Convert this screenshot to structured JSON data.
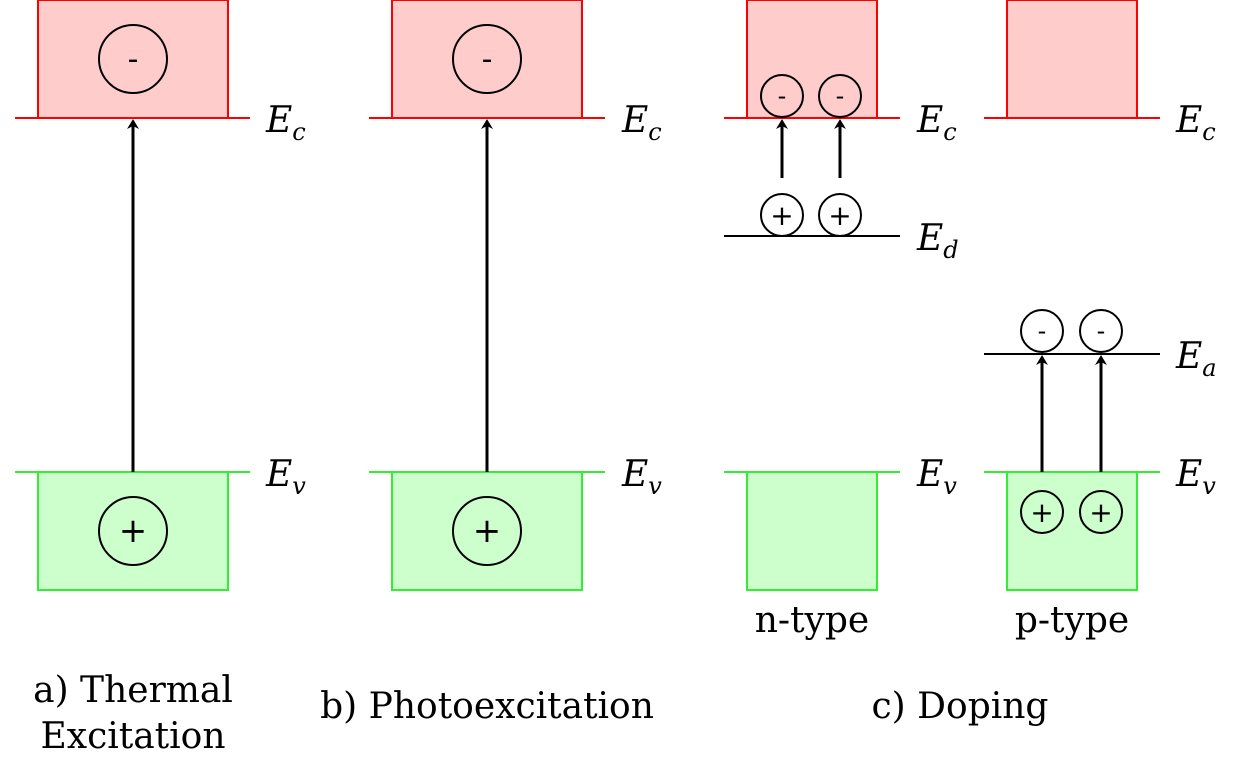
{
  "colors": {
    "conduction_fill": "#ffcccc",
    "conduction_stroke": "#ff0000",
    "valence_fill": "#ccffcc",
    "valence_stroke": "#33ee33",
    "ink": "#000000"
  },
  "carriers": {
    "electron": "-",
    "hole": "+"
  },
  "levels": {
    "E_c": {
      "main": "E",
      "sub": "c"
    },
    "E_v": {
      "main": "E",
      "sub": "v"
    },
    "E_d": {
      "main": "E",
      "sub": "d"
    },
    "E_a": {
      "main": "E",
      "sub": "a"
    }
  },
  "panels": {
    "a": {
      "caption_line1": "a) Thermal",
      "caption_line2": "Excitation"
    },
    "b": {
      "caption": "b) Photoexcitation"
    },
    "c": {
      "caption": "c) Doping",
      "n_label": "n-type",
      "p_label": "p-type"
    }
  }
}
